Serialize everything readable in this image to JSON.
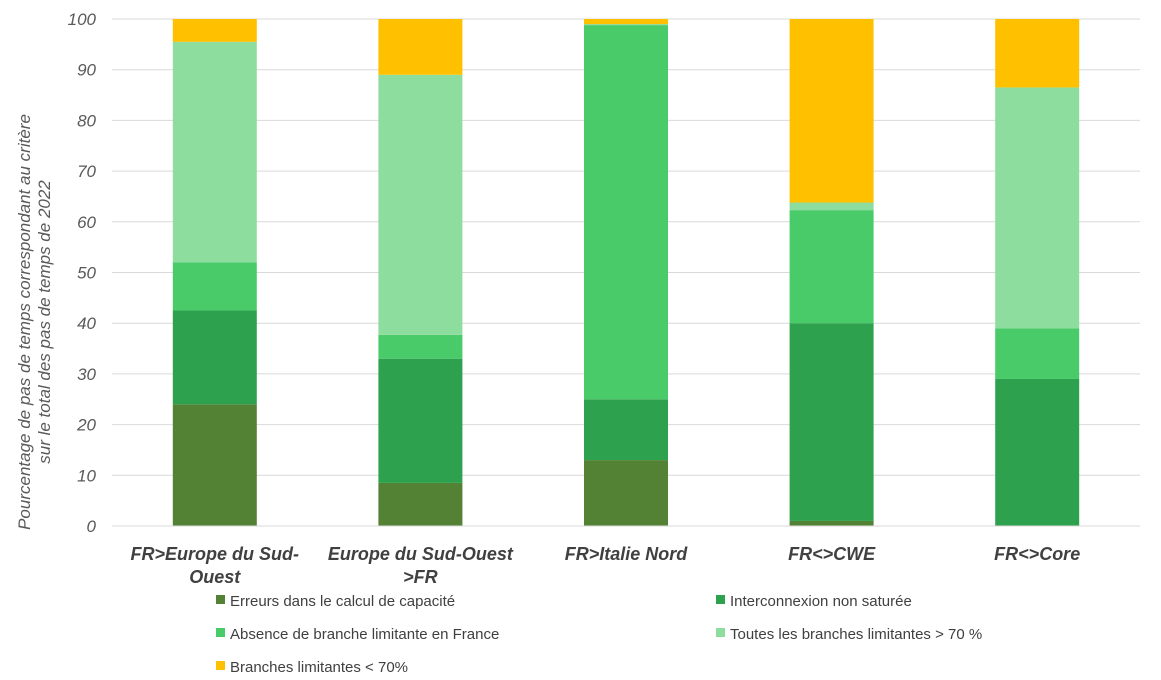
{
  "chart_data": {
    "type": "bar",
    "stacked": true,
    "title": "",
    "xlabel": "",
    "ylabel": [
      "Pourcentage de pas de temps correspondant au critère",
      "sur le total des pas de temps de 2022"
    ],
    "ylim": [
      0,
      100
    ],
    "yticks": [
      0,
      10,
      20,
      30,
      40,
      50,
      60,
      70,
      80,
      90,
      100
    ],
    "grid": true,
    "legend_position": "bottom",
    "categories": [
      [
        "FR>Europe du Sud-",
        "Ouest"
      ],
      [
        "Europe du Sud-Ouest",
        ">FR"
      ],
      [
        "FR>Italie Nord"
      ],
      [
        "FR<>CWE"
      ],
      [
        "FR<>Core"
      ]
    ],
    "series": [
      {
        "name": "Erreurs dans le calcul de capacité",
        "color": "#548235",
        "values": [
          24,
          8.5,
          13,
          1,
          0
        ]
      },
      {
        "name": "Interconnexion non saturée",
        "color": "#2EA14E",
        "values": [
          18.5,
          24.5,
          12,
          39,
          29
        ]
      },
      {
        "name": "Absence de branche limitante en France",
        "color": "#4ACB6A",
        "values": [
          9.5,
          4.7,
          73.8,
          22.3,
          10
        ]
      },
      {
        "name": "Toutes les branches limitantes > 70 %",
        "color": "#8DDD9E",
        "values": [
          43.5,
          51.3,
          0.2,
          1.5,
          47.5
        ]
      },
      {
        "name": "Branches limitantes < 70%",
        "color": "#FFC000",
        "values": [
          4.5,
          11,
          1,
          36.2,
          13.5
        ]
      }
    ]
  }
}
